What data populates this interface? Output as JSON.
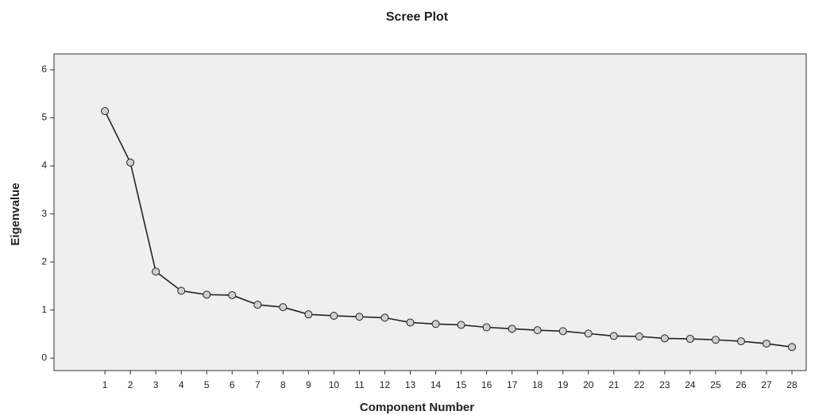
{
  "chart_data": {
    "type": "line",
    "title": "Scree Plot",
    "x_label": "Component Number",
    "y_label": "Eigenvalue",
    "x": [
      1,
      2,
      3,
      4,
      5,
      6,
      7,
      8,
      9,
      10,
      11,
      12,
      13,
      14,
      15,
      16,
      17,
      18,
      19,
      20,
      21,
      22,
      23,
      24,
      25,
      26,
      27,
      28
    ],
    "values": [
      5.14,
      4.07,
      1.8,
      1.4,
      1.32,
      1.31,
      1.11,
      1.06,
      0.91,
      0.88,
      0.86,
      0.84,
      0.74,
      0.71,
      0.69,
      0.64,
      0.61,
      0.58,
      0.56,
      0.51,
      0.46,
      0.45,
      0.41,
      0.4,
      0.38,
      0.35,
      0.3,
      0.23
    ],
    "color": "#222222",
    "xlim": [
      -1,
      28.56
    ],
    "xticks": [
      1,
      2,
      3,
      4,
      5,
      6,
      7,
      8,
      9,
      10,
      11,
      12,
      13,
      14,
      15,
      16,
      17,
      18,
      19,
      20,
      21,
      22,
      23,
      24,
      25,
      26,
      27,
      28
    ],
    "ylim": [
      -0.26,
      6.33
    ],
    "yticks": [
      0,
      1,
      2,
      3,
      4,
      5,
      6
    ],
    "grid": false
  }
}
